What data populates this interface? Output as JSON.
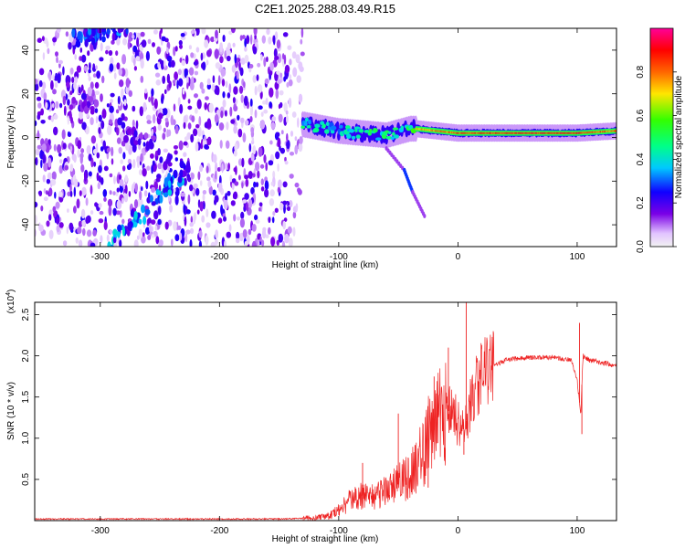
{
  "figure": {
    "title": "C2E1.2025.288.03.49.R15"
  },
  "colorbar": {
    "label": "Normalized spectral amplitude",
    "range": [
      0,
      1
    ],
    "ticks": [
      0.0,
      0.2,
      0.4,
      0.6,
      0.8
    ],
    "tick_labels": [
      "0.0",
      "0.2",
      "0.4",
      "0.6",
      "0.8"
    ],
    "stops": [
      {
        "v": 0.0,
        "color": "#f2f2f2"
      },
      {
        "v": 0.06,
        "color": "#e2c4ff"
      },
      {
        "v": 0.15,
        "color": "#7a00e6"
      },
      {
        "v": 0.25,
        "color": "#1000ff"
      },
      {
        "v": 0.36,
        "color": "#00c8ff"
      },
      {
        "v": 0.46,
        "color": "#00ff88"
      },
      {
        "v": 0.58,
        "color": "#33ff00"
      },
      {
        "v": 0.7,
        "color": "#ffe600"
      },
      {
        "v": 0.8,
        "color": "#ff6600"
      },
      {
        "v": 0.9,
        "color": "#ff0000"
      },
      {
        "v": 1.0,
        "color": "#ff0099"
      }
    ]
  },
  "chart_data": [
    {
      "type": "heatmap",
      "title": "C2E1.2025.288.03.49.R15",
      "xlabel": "Height of straight line (km)",
      "ylabel": "Frequency (Hz)",
      "xlim": [
        -355,
        133
      ],
      "ylim": [
        -50,
        50
      ],
      "xticks": [
        -300,
        -200,
        -100,
        0,
        100
      ],
      "xtick_labels": [
        "-300",
        "-200",
        "-100",
        "0",
        "100"
      ],
      "yticks": [
        -40,
        -20,
        0,
        20,
        40
      ],
      "ytick_labels": [
        "-40",
        "-20",
        "0",
        "20",
        "40"
      ],
      "noise_region_x": [
        -355,
        -130
      ],
      "signal_band": [
        {
          "x": -130,
          "f": 6,
          "amp": 0.4
        },
        {
          "x": -100,
          "f": 3,
          "amp": 0.35
        },
        {
          "x": -60,
          "f": 1,
          "amp": 0.45
        },
        {
          "x": -40,
          "f": 4,
          "amp": 0.4
        },
        {
          "x": -35,
          "f": 4,
          "amp": 0.75
        },
        {
          "x": 0,
          "f": 2,
          "amp": 0.85
        },
        {
          "x": 50,
          "f": 2,
          "amp": 0.9
        },
        {
          "x": 100,
          "f": 2,
          "amp": 0.9
        },
        {
          "x": 133,
          "f": 3,
          "amp": 0.8
        }
      ],
      "tail": [
        {
          "x": -60,
          "f": -5
        },
        {
          "x": -45,
          "f": -15
        },
        {
          "x": -38,
          "f": -25
        },
        {
          "x": -28,
          "f": -36
        }
      ],
      "diagonal_streaks": [
        {
          "from": [
            -320,
            45
          ],
          "to": [
            -280,
            50
          ],
          "amp": 0.3
        },
        {
          "from": [
            -320,
            20
          ],
          "to": [
            -220,
            -20
          ],
          "amp": 0.2
        },
        {
          "from": [
            -290,
            -50
          ],
          "to": [
            -230,
            -15
          ],
          "amp": 0.35
        }
      ]
    },
    {
      "type": "line",
      "xlabel": "Height of straight line (km)",
      "ylabel": "SNR (10 * v/v)",
      "y_scale_label": "(x10",
      "y_scale_exponent": "4",
      "y_scale_suffix": ")",
      "xlim": [
        -355,
        133
      ],
      "ylim": [
        0,
        2.65
      ],
      "xticks": [
        -300,
        -200,
        -100,
        0,
        100
      ],
      "xtick_labels": [
        "-300",
        "-200",
        "-100",
        "0",
        "100"
      ],
      "yticks": [
        0.5,
        1.0,
        1.5,
        2.0,
        2.5
      ],
      "ytick_labels": [
        "0.5",
        "1.0",
        "1.5",
        "2.0",
        "2.5"
      ],
      "color": "#ee2222",
      "series": [
        {
          "name": "SNR",
          "x": [
            -355,
            -300,
            -200,
            -150,
            -120,
            -110,
            -100,
            -90,
            -80,
            -70,
            -60,
            -50,
            -40,
            -30,
            -25,
            -20,
            -15,
            -10,
            -5,
            0,
            5,
            10,
            15,
            20,
            30,
            40,
            60,
            80,
            90,
            95,
            100,
            103,
            105,
            110,
            120,
            133
          ],
          "y": [
            0.02,
            0.02,
            0.02,
            0.02,
            0.03,
            0.05,
            0.12,
            0.25,
            0.3,
            0.28,
            0.4,
            0.45,
            0.55,
            0.8,
            1.0,
            1.1,
            1.3,
            1.35,
            1.3,
            1.2,
            1.1,
            1.4,
            1.6,
            1.75,
            1.88,
            1.95,
            1.98,
            1.98,
            1.96,
            1.95,
            1.7,
            1.3,
            2.0,
            1.95,
            1.92,
            1.88
          ]
        }
      ],
      "spikes": [
        {
          "x": 7,
          "y": 2.65
        },
        {
          "x": 5,
          "y": 0.8
        },
        {
          "x": -8,
          "y": 2.1
        },
        {
          "x": -20,
          "y": 1.75
        },
        {
          "x": -25,
          "y": 0.4
        },
        {
          "x": -50,
          "y": 1.3
        },
        {
          "x": -80,
          "y": 0.7
        },
        {
          "x": 102,
          "y": 2.4
        },
        {
          "x": 104,
          "y": 1.05
        }
      ]
    }
  ]
}
